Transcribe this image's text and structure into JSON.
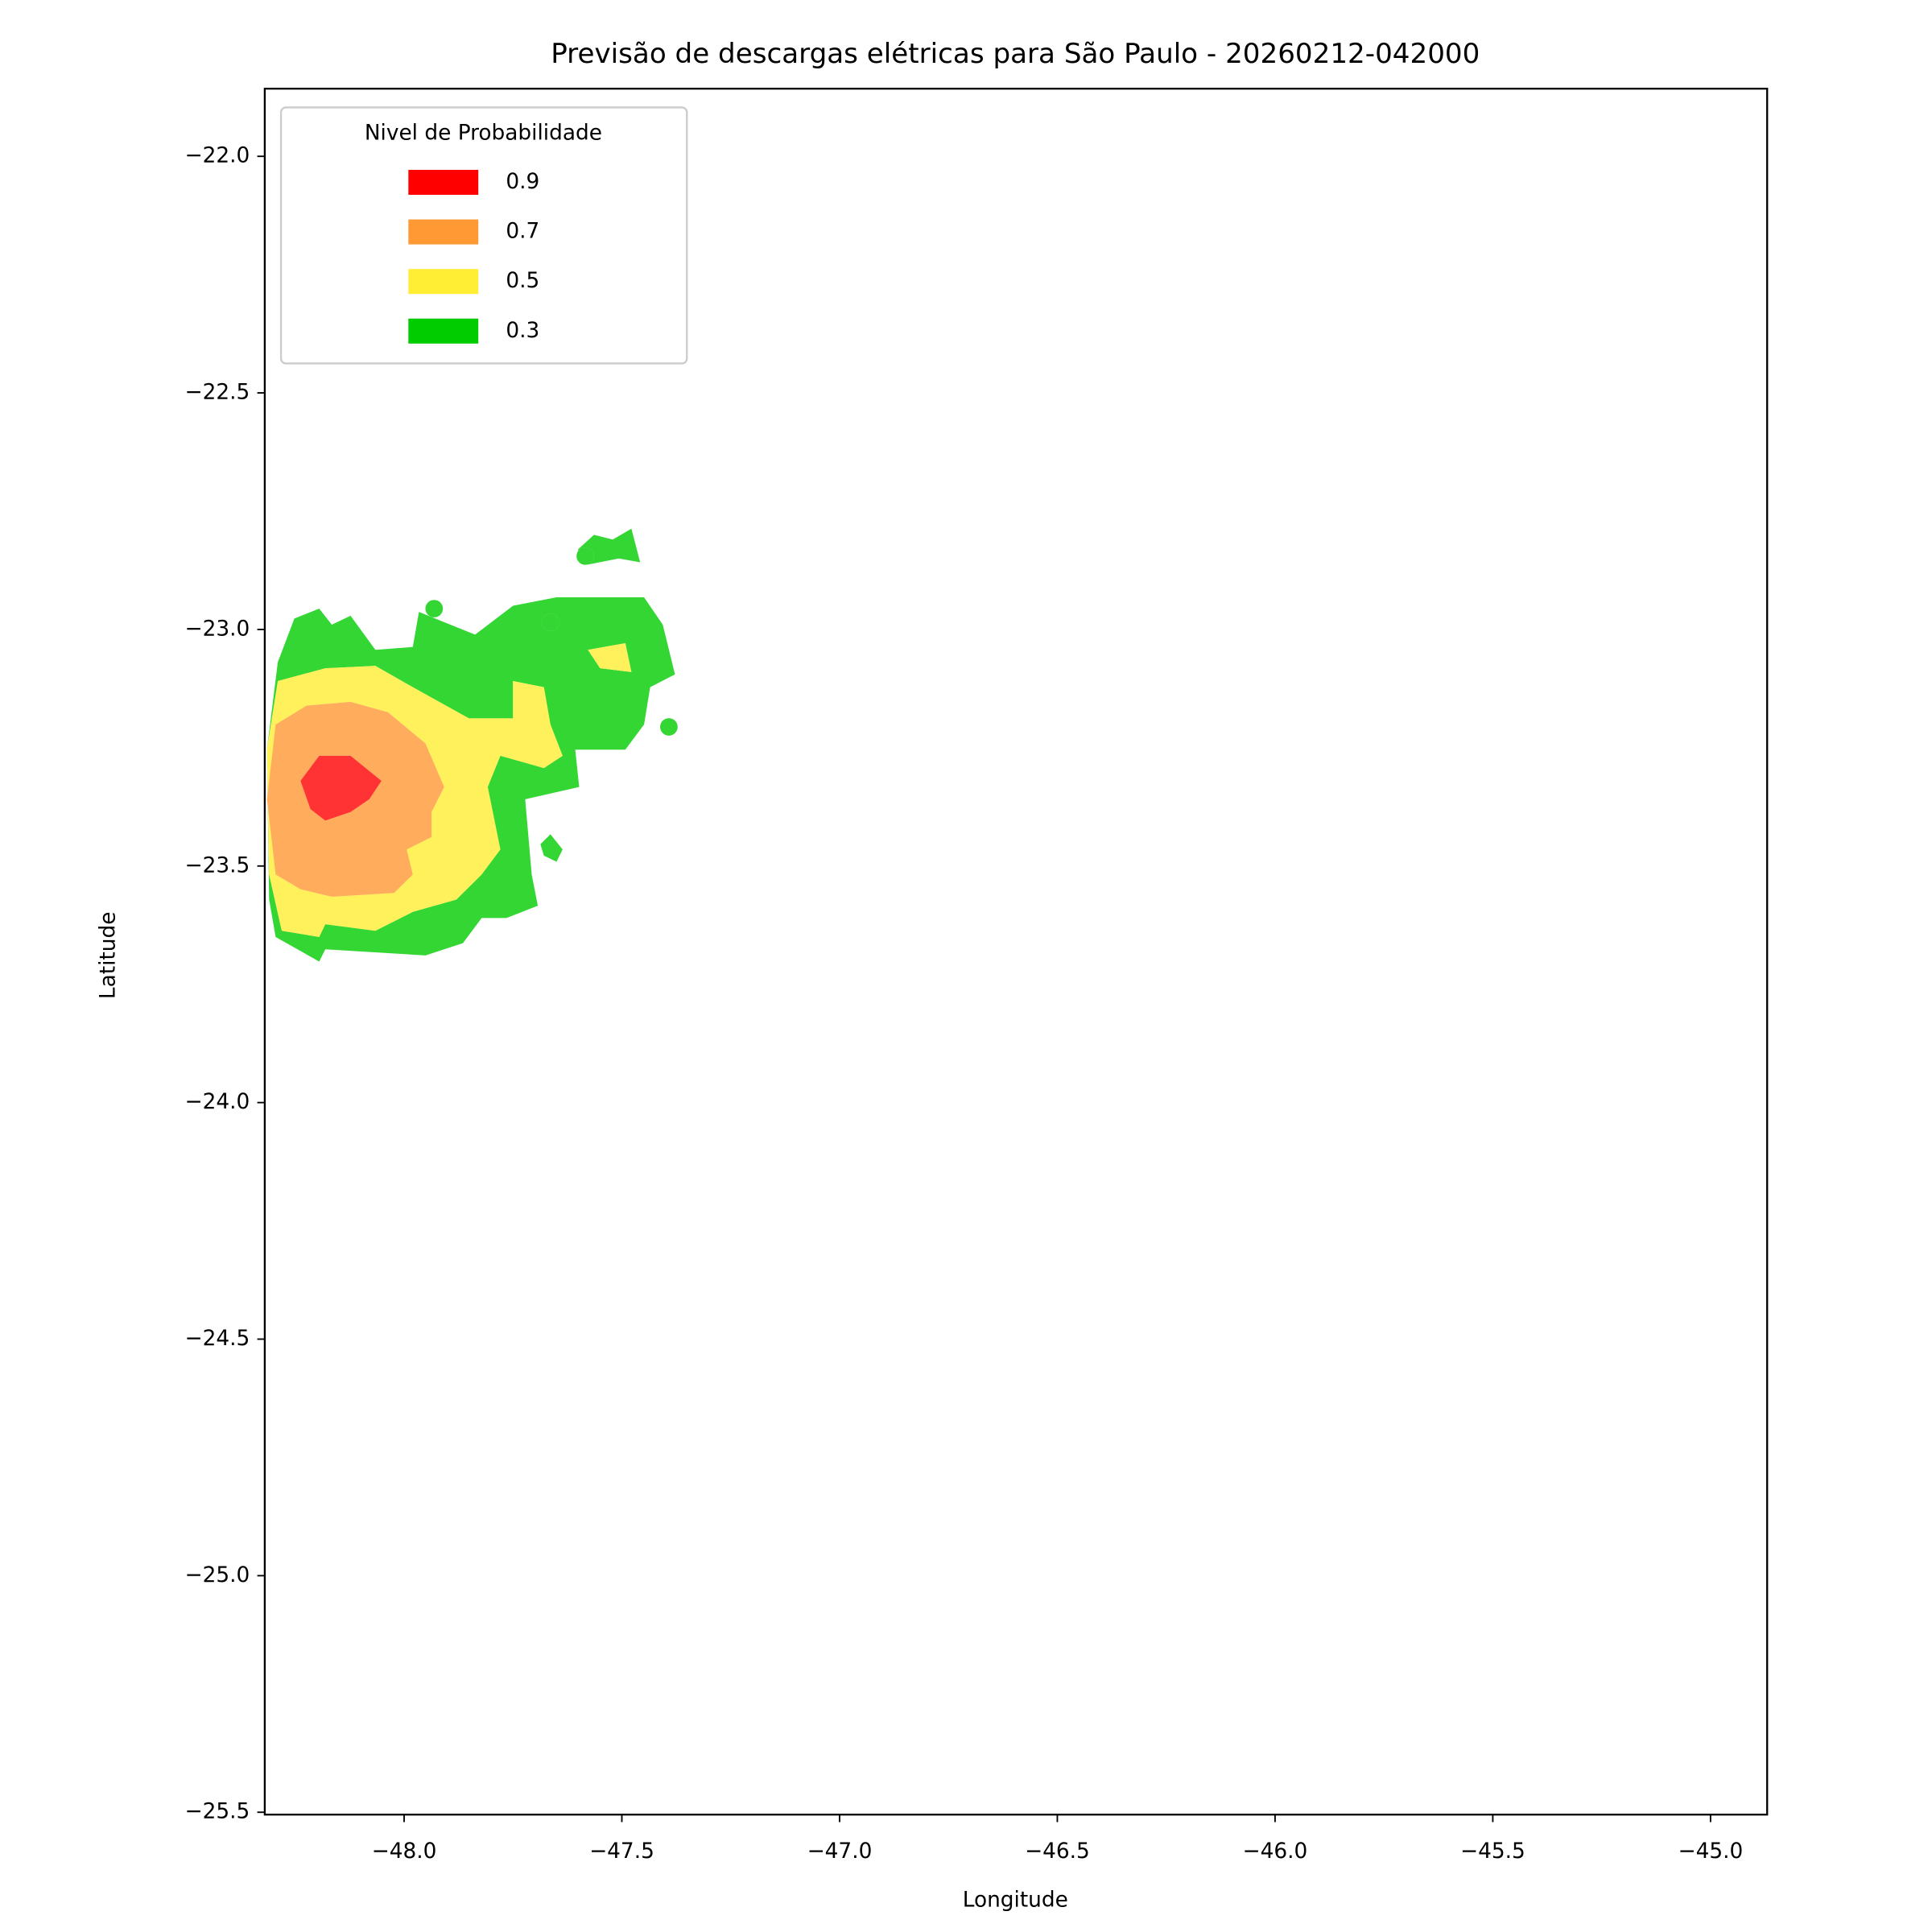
{
  "chart_data": {
    "type": "contour",
    "title": "Previsão de descargas elétricas para São Paulo - 20260212-042000",
    "x_label": "Longitude",
    "y_label": "Latitude",
    "legend_title": "Nivel de Probabilidade",
    "legend_position": "upper left",
    "alpha": 0.8,
    "xlim": [
      -48.32,
      -44.87
    ],
    "ylim": [
      -25.505,
      -21.857
    ],
    "xticks": [
      {
        "value": -48.0,
        "label": "−48.0"
      },
      {
        "value": -47.5,
        "label": "−47.5"
      },
      {
        "value": -47.0,
        "label": "−47.0"
      },
      {
        "value": -46.5,
        "label": "−46.5"
      },
      {
        "value": -46.0,
        "label": "−46.0"
      },
      {
        "value": -45.5,
        "label": "−45.5"
      },
      {
        "value": -45.0,
        "label": "−45.0"
      }
    ],
    "yticks": [
      {
        "value": -22.0,
        "label": "−22.0"
      },
      {
        "value": -22.5,
        "label": "−22.5"
      },
      {
        "value": -23.0,
        "label": "−23.0"
      },
      {
        "value": -23.5,
        "label": "−23.5"
      },
      {
        "value": -24.0,
        "label": "−24.0"
      },
      {
        "value": -24.5,
        "label": "−24.5"
      },
      {
        "value": -25.0,
        "label": "−25.0"
      },
      {
        "value": -25.5,
        "label": "−25.5"
      }
    ],
    "series": [
      {
        "name": "0.9",
        "color": "#ff0000",
        "polygons": [
          [
            [
              -48.238,
              -23.32
            ],
            [
              -48.195,
              -23.267
            ],
            [
              -48.123,
              -23.267
            ],
            [
              -48.052,
              -23.32
            ],
            [
              -48.08,
              -23.359
            ],
            [
              -48.123,
              -23.386
            ],
            [
              -48.181,
              -23.404
            ],
            [
              -48.215,
              -23.38
            ]
          ]
        ],
        "points": []
      },
      {
        "name": "0.7",
        "color": "#ff9933",
        "polygons": [
          [
            [
              -48.295,
              -23.201
            ],
            [
              -48.224,
              -23.161
            ],
            [
              -48.123,
              -23.153
            ],
            [
              -48.037,
              -23.175
            ],
            [
              -47.951,
              -23.241
            ],
            [
              -47.908,
              -23.333
            ],
            [
              -47.937,
              -23.386
            ],
            [
              -47.937,
              -23.439
            ],
            [
              -47.994,
              -23.465
            ],
            [
              -47.98,
              -23.518
            ],
            [
              -48.023,
              -23.557
            ],
            [
              -48.166,
              -23.565
            ],
            [
              -48.238,
              -23.549
            ],
            [
              -48.295,
              -23.518
            ],
            [
              -48.315,
              -23.359
            ]
          ]
        ],
        "points": []
      },
      {
        "name": "0.5",
        "color": "#ffee33",
        "polygons": [
          [
            [
              -48.29,
              -23.109
            ],
            [
              -48.181,
              -23.082
            ],
            [
              -48.066,
              -23.077
            ],
            [
              -47.98,
              -23.122
            ],
            [
              -47.851,
              -23.188
            ],
            [
              -47.75,
              -23.188
            ],
            [
              -47.75,
              -23.109
            ],
            [
              -47.679,
              -23.122
            ],
            [
              -47.664,
              -23.201
            ],
            [
              -47.636,
              -23.267
            ],
            [
              -47.679,
              -23.293
            ],
            [
              -47.779,
              -23.267
            ],
            [
              -47.808,
              -23.333
            ],
            [
              -47.779,
              -23.465
            ],
            [
              -47.822,
              -23.518
            ],
            [
              -47.88,
              -23.571
            ],
            [
              -47.98,
              -23.597
            ],
            [
              -48.066,
              -23.637
            ],
            [
              -48.181,
              -23.623
            ],
            [
              -48.195,
              -23.65
            ],
            [
              -48.281,
              -23.637
            ],
            [
              -48.31,
              -23.518
            ],
            [
              -48.315,
              -23.254
            ]
          ],
          [
            [
              -47.578,
              -23.043
            ],
            [
              -47.492,
              -23.029
            ],
            [
              -47.478,
              -23.09
            ],
            [
              -47.55,
              -23.082
            ]
          ]
        ],
        "points": [
          [
            -47.859,
            -23.505
          ]
        ]
      },
      {
        "name": "0.3",
        "color": "#00cc00",
        "polygons": [
          [
            [
              -48.29,
              -23.069
            ],
            [
              -48.252,
              -22.977
            ],
            [
              -48.195,
              -22.956
            ],
            [
              -48.166,
              -22.99
            ],
            [
              -48.123,
              -22.971
            ],
            [
              -48.066,
              -23.043
            ],
            [
              -47.98,
              -23.037
            ],
            [
              -47.966,
              -22.963
            ],
            [
              -47.837,
              -23.011
            ],
            [
              -47.75,
              -22.95
            ],
            [
              -47.65,
              -22.932
            ],
            [
              -47.449,
              -22.932
            ],
            [
              -47.406,
              -22.99
            ],
            [
              -47.378,
              -23.095
            ],
            [
              -47.435,
              -23.122
            ],
            [
              -47.449,
              -23.201
            ],
            [
              -47.492,
              -23.254
            ],
            [
              -47.607,
              -23.254
            ],
            [
              -47.598,
              -23.333
            ],
            [
              -47.722,
              -23.359
            ],
            [
              -47.707,
              -23.518
            ],
            [
              -47.693,
              -23.584
            ],
            [
              -47.765,
              -23.61
            ],
            [
              -47.822,
              -23.61
            ],
            [
              -47.865,
              -23.663
            ],
            [
              -47.951,
              -23.689
            ],
            [
              -48.181,
              -23.676
            ],
            [
              -48.195,
              -23.702
            ],
            [
              -48.295,
              -23.65
            ],
            [
              -48.31,
              -23.571
            ],
            [
              -48.315,
              -23.254
            ]
          ],
          [
            [
              -47.601,
              -22.831
            ],
            [
              -47.564,
              -22.8
            ],
            [
              -47.521,
              -22.81
            ],
            [
              -47.478,
              -22.787
            ],
            [
              -47.458,
              -22.858
            ],
            [
              -47.507,
              -22.85
            ],
            [
              -47.578,
              -22.863
            ]
          ],
          [
            [
              -47.687,
              -23.454
            ],
            [
              -47.664,
              -23.433
            ],
            [
              -47.636,
              -23.465
            ],
            [
              -47.65,
              -23.491
            ],
            [
              -47.679,
              -23.478
            ]
          ]
        ],
        "points": [
          [
            -47.931,
            -22.956
          ],
          [
            -47.664,
            -22.985
          ],
          [
            -47.584,
            -22.845
          ],
          [
            -47.392,
            -23.206
          ]
        ]
      }
    ]
  }
}
